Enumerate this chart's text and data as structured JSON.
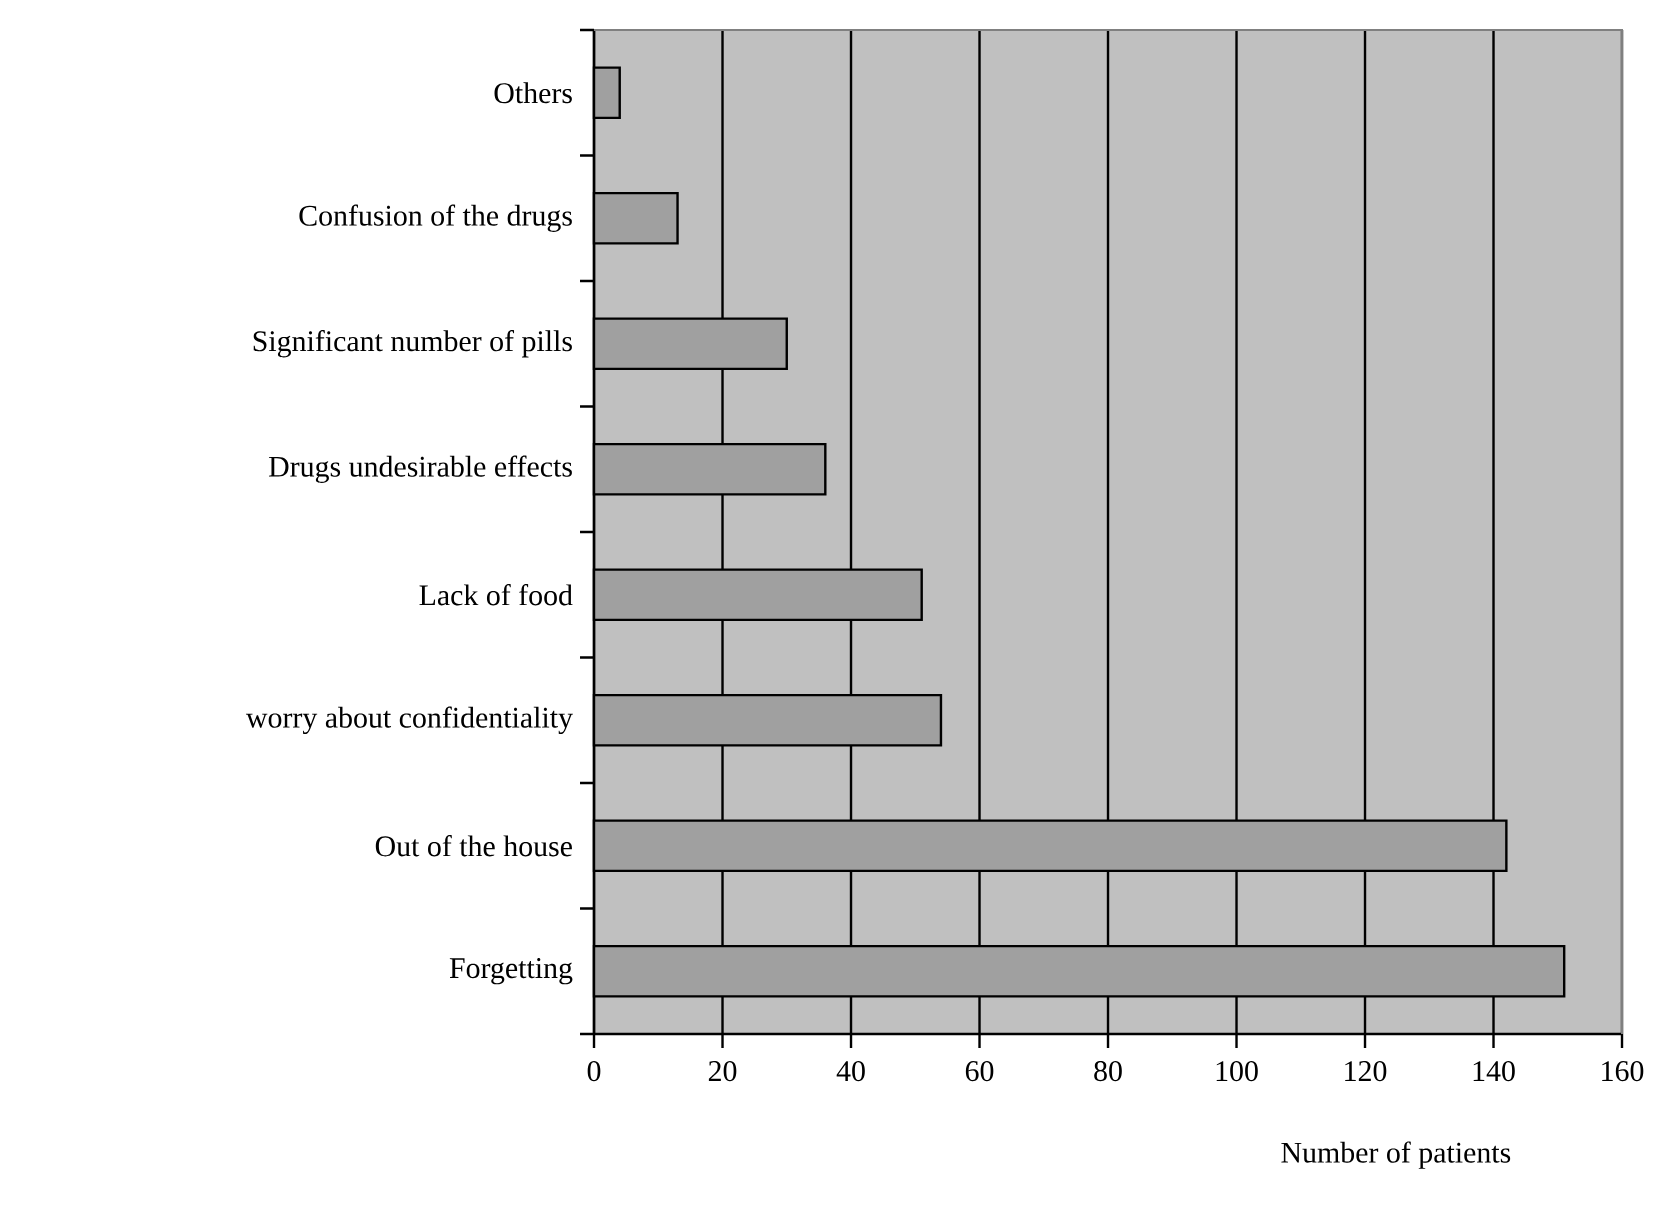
{
  "chart_data": {
    "type": "bar",
    "orientation": "horizontal",
    "xlabel": "Number of patients",
    "categories": [
      "Others",
      "Confusion of the drugs",
      "Significant number of pills",
      "Drugs undesirable effects",
      "Lack of food",
      "worry about confidentiality",
      "Out of the house",
      "Forgetting"
    ],
    "values": [
      4,
      13,
      30,
      36,
      51,
      54,
      142,
      151
    ],
    "color": "#a0a0a0",
    "xlim": [
      0,
      160
    ],
    "xticks": [
      0,
      20,
      40,
      60,
      80,
      100,
      120,
      140,
      160
    ],
    "grid": "x"
  }
}
